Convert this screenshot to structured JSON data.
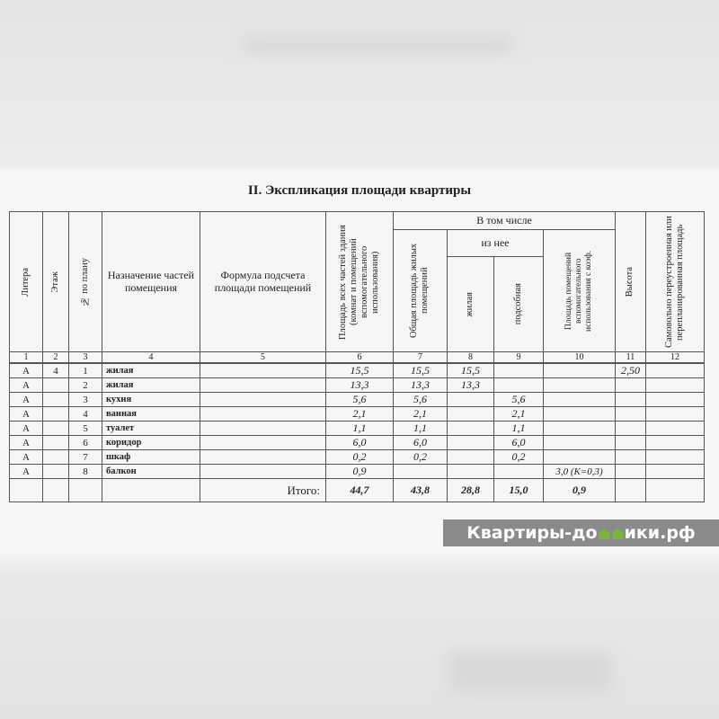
{
  "title": "II. Экспликация площади квартиры",
  "headers": {
    "c1": "Литера",
    "c2": "Этаж",
    "c3": "№ по плану",
    "c4": "Назначение частей помещения",
    "c5": "Формула подсчета площади помещений",
    "c6": "Площадь всех частей здания (комнат и помещений вспомогательного использования)",
    "group": "В том числе",
    "c7": "Общая площадь жилых помещений",
    "subgroup": "из нее",
    "c8": "жилая",
    "c9": "подсобная",
    "c10": "Площадь помещений вспомогательного использования с коэф.",
    "c11": "Высота",
    "c12": "Самовольно переустроенная или перепланированная площадь"
  },
  "column_numbers": [
    "1",
    "2",
    "3",
    "4",
    "5",
    "6",
    "7",
    "8",
    "9",
    "10",
    "11",
    "12"
  ],
  "rows": [
    {
      "litera": "А",
      "floor": "4",
      "no": "1",
      "name": "жилая",
      "formula": "",
      "total": "15,5",
      "general": "15,5",
      "living": "15,5",
      "aux": "",
      "coef": "",
      "height": "2,50",
      "unauth": ""
    },
    {
      "litera": "А",
      "floor": "",
      "no": "2",
      "name": "жилая",
      "formula": "",
      "total": "13,3",
      "general": "13,3",
      "living": "13,3",
      "aux": "",
      "coef": "",
      "height": "",
      "unauth": ""
    },
    {
      "litera": "А",
      "floor": "",
      "no": "3",
      "name": "кухня",
      "formula": "",
      "total": "5,6",
      "general": "5,6",
      "living": "",
      "aux": "5,6",
      "coef": "",
      "height": "",
      "unauth": ""
    },
    {
      "litera": "А",
      "floor": "",
      "no": "4",
      "name": "ванная",
      "formula": "",
      "total": "2,1",
      "general": "2,1",
      "living": "",
      "aux": "2,1",
      "coef": "",
      "height": "",
      "unauth": ""
    },
    {
      "litera": "А",
      "floor": "",
      "no": "5",
      "name": "туалет",
      "formula": "",
      "total": "1,1",
      "general": "1,1",
      "living": "",
      "aux": "1,1",
      "coef": "",
      "height": "",
      "unauth": ""
    },
    {
      "litera": "А",
      "floor": "",
      "no": "6",
      "name": "коридор",
      "formula": "",
      "total": "6,0",
      "general": "6,0",
      "living": "",
      "aux": "6,0",
      "coef": "",
      "height": "",
      "unauth": ""
    },
    {
      "litera": "А",
      "floor": "",
      "no": "7",
      "name": "шкаф",
      "formula": "",
      "total": "0,2",
      "general": "0,2",
      "living": "",
      "aux": "0,2",
      "coef": "",
      "height": "",
      "unauth": ""
    },
    {
      "litera": "А",
      "floor": "",
      "no": "8",
      "name": "балкон",
      "formula": "",
      "total": "0,9",
      "general": "",
      "living": "",
      "aux": "",
      "coef": "3,0 (К=0,3)",
      "height": "",
      "unauth": ""
    }
  ],
  "totals": {
    "label": "Итого:",
    "total": "44,7",
    "general": "43,8",
    "living": "28,8",
    "aux": "15,0",
    "coef": "0,9"
  },
  "watermark": {
    "before": "Квартиры-до",
    "after": "ики.рф",
    "full": "Квартиры-домики.рф",
    "icon": "house-icon",
    "accent": "#7cb342"
  }
}
